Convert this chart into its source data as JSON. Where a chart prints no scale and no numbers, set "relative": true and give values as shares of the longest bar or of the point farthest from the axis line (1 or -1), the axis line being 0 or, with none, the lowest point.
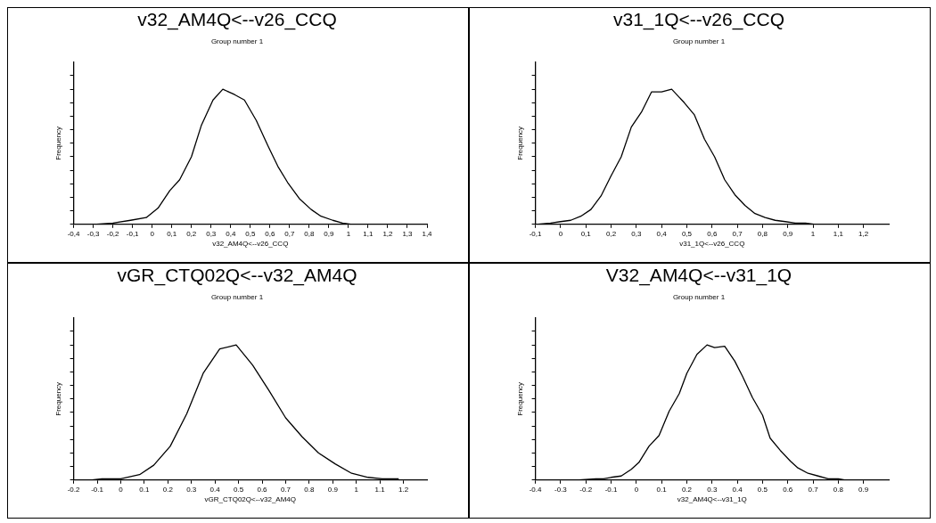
{
  "chart_data": [
    {
      "type": "line",
      "title": "v32_AM4Q<--v26_CCQ",
      "subtitle": "Group number 1",
      "xlabel": "v32_AM4Q<--v26_CCQ",
      "ylabel": "Frequency",
      "relative": true,
      "tick_labels": "x",
      "grid": false,
      "legend": false,
      "marker": "none",
      "color": "#000000",
      "xlim": [
        -0.4,
        1.4
      ],
      "xticks": [
        {
          "value": -0.4,
          "label": "-0,4"
        },
        {
          "value": -0.3,
          "label": "-0,3"
        },
        {
          "value": -0.2,
          "label": "-0,2"
        },
        {
          "value": -0.1,
          "label": "-0,1"
        },
        0,
        {
          "value": 0.1,
          "label": "0,1"
        },
        {
          "value": 0.2,
          "label": "0,2"
        },
        {
          "value": 0.3,
          "label": "0,3"
        },
        {
          "value": 0.4,
          "label": "0,4"
        },
        {
          "value": 0.5,
          "label": "0,5"
        },
        {
          "value": 0.6,
          "label": "0,6"
        },
        {
          "value": 0.7,
          "label": "0,7"
        },
        {
          "value": 0.8,
          "label": "0,8"
        },
        {
          "value": 0.9,
          "label": "0,9"
        },
        1,
        {
          "value": 1.1,
          "label": "1,1"
        },
        {
          "value": 1.2,
          "label": "1,2"
        },
        {
          "value": 1.3,
          "label": "1,3"
        },
        {
          "value": 1.4,
          "label": "1,4"
        }
      ],
      "x": [
        -0.3,
        -0.2,
        -0.11,
        -0.03,
        0.03,
        0.09,
        0.14,
        0.2,
        0.25,
        0.31,
        0.36,
        0.42,
        0.47,
        0.53,
        0.59,
        0.64,
        0.69,
        0.75,
        0.81,
        0.86,
        0.92,
        0.97,
        1.02,
        1.08,
        1.13,
        1.19,
        1.24,
        1.3
      ],
      "values": [
        0,
        0.01,
        0.03,
        0.05,
        0.12,
        0.25,
        0.33,
        0.5,
        0.73,
        0.92,
        1,
        0.96,
        0.92,
        0.77,
        0.58,
        0.43,
        0.31,
        0.19,
        0.11,
        0.06,
        0.03,
        0.01,
        0,
        0,
        0,
        0,
        0,
        0
      ]
    },
    {
      "type": "line",
      "title": "v31_1Q<--v26_CCQ",
      "subtitle": "Group number 1",
      "xlabel": "v31_1Q<--v26_CCQ",
      "ylabel": "Frequency",
      "relative": true,
      "tick_labels": "x",
      "grid": false,
      "legend": false,
      "marker": "none",
      "color": "#000000",
      "xlim": [
        -0.1,
        1.3
      ],
      "xticks": [
        {
          "value": -0.1,
          "label": "-0,1"
        },
        0,
        {
          "value": 0.1,
          "label": "0,1"
        },
        {
          "value": 0.2,
          "label": "0,2"
        },
        {
          "value": 0.3,
          "label": "0,3"
        },
        {
          "value": 0.4,
          "label": "0,4"
        },
        {
          "value": 0.5,
          "label": "0,5"
        },
        {
          "value": 0.6,
          "label": "0,6"
        },
        {
          "value": 0.7,
          "label": "0,7"
        },
        {
          "value": 0.8,
          "label": "0,8"
        },
        {
          "value": 0.9,
          "label": "0,9"
        },
        1,
        {
          "value": 1.1,
          "label": "1,1"
        },
        {
          "value": 1.2,
          "label": "1,2"
        }
      ],
      "x": [
        -0.1,
        -0.04,
        0,
        0.04,
        0.08,
        0.12,
        0.16,
        0.2,
        0.24,
        0.28,
        0.32,
        0.36,
        0.4,
        0.44,
        0.49,
        0.53,
        0.57,
        0.61,
        0.65,
        0.69,
        0.73,
        0.77,
        0.81,
        0.85,
        0.89,
        0.93,
        0.97,
        1.01,
        1.06,
        1.09
      ],
      "values": [
        0,
        0.01,
        0.02,
        0.03,
        0.06,
        0.11,
        0.21,
        0.36,
        0.5,
        0.72,
        0.83,
        0.98,
        0.98,
        1,
        0.9,
        0.81,
        0.63,
        0.5,
        0.33,
        0.22,
        0.14,
        0.08,
        0.05,
        0.03,
        0.02,
        0.01,
        0.01,
        0,
        0,
        0
      ]
    },
    {
      "type": "line",
      "title": "vGR_CTQ02Q<--v32_AM4Q",
      "subtitle": "Group number 1",
      "xlabel": "vGR_CTQ02Q<--v32_AM4Q",
      "ylabel": "Frequency",
      "relative": true,
      "tick_labels": "x",
      "grid": false,
      "legend": false,
      "marker": "none",
      "color": "#000000",
      "xlim": [
        -0.2,
        1.3
      ],
      "xticks": [
        -0.2,
        -0.1,
        0,
        0.1,
        0.2,
        0.3,
        0.4,
        0.5,
        0.6,
        0.7,
        0.8,
        0.9,
        1,
        1.1,
        1.2
      ],
      "x": [
        -0.13,
        -0.08,
        0,
        0.08,
        0.14,
        0.21,
        0.28,
        0.35,
        0.42,
        0.49,
        0.56,
        0.63,
        0.7,
        0.77,
        0.84,
        0.91,
        0.98,
        1.05,
        1.11,
        1.18
      ],
      "values": [
        0,
        0.01,
        0.01,
        0.04,
        0.11,
        0.25,
        0.49,
        0.79,
        0.97,
        1,
        0.85,
        0.66,
        0.46,
        0.32,
        0.2,
        0.12,
        0.05,
        0.02,
        0.01,
        0.01
      ]
    },
    {
      "type": "line",
      "title": "V32_AM4Q<--v31_1Q",
      "subtitle": "Group number 1",
      "xlabel": "v32_AM4Q<--v31_1Q",
      "ylabel": "Frequency",
      "relative": true,
      "tick_labels": "x",
      "grid": false,
      "legend": false,
      "marker": "none",
      "color": "#000000",
      "xlim": [
        -0.4,
        1.0
      ],
      "xticks": [
        -0.4,
        -0.3,
        -0.2,
        -0.1,
        0,
        0.1,
        0.2,
        0.3,
        0.4,
        0.5,
        0.6,
        0.7,
        0.8,
        0.9
      ],
      "x": [
        -0.24,
        -0.16,
        -0.13,
        -0.1,
        -0.06,
        -0.02,
        0.01,
        0.05,
        0.09,
        0.13,
        0.17,
        0.2,
        0.24,
        0.28,
        0.31,
        0.35,
        0.39,
        0.42,
        0.46,
        0.5,
        0.53,
        0.57,
        0.61,
        0.64,
        0.68,
        0.72,
        0.76,
        0.8,
        0.83
      ],
      "values": [
        0,
        0.01,
        0.01,
        0.02,
        0.03,
        0.08,
        0.13,
        0.25,
        0.33,
        0.51,
        0.64,
        0.79,
        0.93,
        1,
        0.98,
        0.99,
        0.88,
        0.77,
        0.61,
        0.48,
        0.31,
        0.22,
        0.14,
        0.09,
        0.05,
        0.03,
        0.01,
        0.01,
        0
      ]
    }
  ]
}
